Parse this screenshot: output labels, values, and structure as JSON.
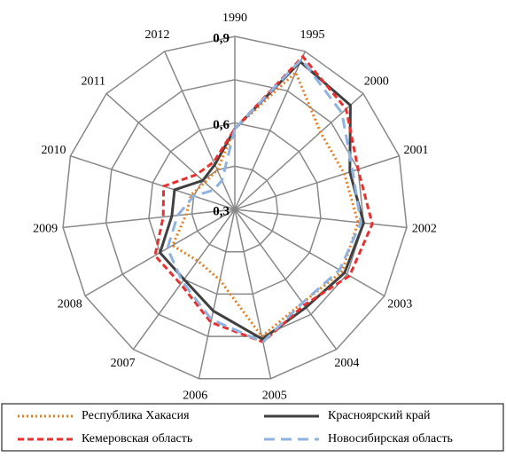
{
  "chart_data": {
    "type": "radar",
    "categories": [
      "1990",
      "1995",
      "2000",
      "2001",
      "2002",
      "2003",
      "2004",
      "2005",
      "2006",
      "2007",
      "2008",
      "2009",
      "2010",
      "2011",
      "2012"
    ],
    "ylim": [
      0.3,
      0.9
    ],
    "yticks": [
      {
        "value": 0.3,
        "label": "0,3"
      },
      {
        "value": 0.45,
        "label": null
      },
      {
        "value": 0.6,
        "label": "0,6"
      },
      {
        "value": 0.75,
        "label": null
      },
      {
        "value": 0.9,
        "label": "0,9"
      }
    ],
    "grid": true,
    "legend": "bottom",
    "series": [
      {
        "name": "Республика Хакасия",
        "color": "#e87d1e",
        "line_style": "dotted",
        "values": [
          0.58,
          0.82,
          0.7,
          0.7,
          0.73,
          0.73,
          0.7,
          0.75,
          0.55,
          0.52,
          0.55,
          0.47,
          0.46,
          0.44,
          0.45
        ]
      },
      {
        "name": "Красноярский край",
        "color": "#404040",
        "line_style": "solid",
        "values": [
          0.58,
          0.86,
          0.84,
          0.72,
          0.75,
          0.74,
          0.72,
          0.76,
          0.66,
          0.6,
          0.6,
          0.52,
          0.52,
          0.45,
          0.47
        ]
      },
      {
        "name": "Кемеровская область",
        "color": "#e8312f",
        "line_style": "dashed",
        "values": [
          0.58,
          0.88,
          0.82,
          0.75,
          0.78,
          0.76,
          0.71,
          0.77,
          0.7,
          0.62,
          0.62,
          0.55,
          0.56,
          0.48,
          0.48
        ]
      },
      {
        "name": "Новосибирская область",
        "color": "#8fb3e0",
        "line_style": "longdash",
        "values": [
          0.58,
          0.87,
          0.8,
          0.73,
          0.74,
          0.72,
          0.7,
          0.77,
          0.69,
          0.61,
          0.57,
          0.5,
          0.45,
          0.4,
          0.41
        ]
      }
    ]
  }
}
